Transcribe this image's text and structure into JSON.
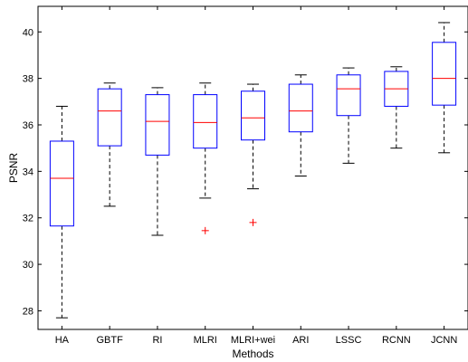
{
  "chart_data": {
    "type": "box",
    "xlabel": "Methods",
    "ylabel": "PSNR",
    "ylim": [
      27.2,
      41.1
    ],
    "yticks": [
      28,
      30,
      32,
      34,
      36,
      38,
      40
    ],
    "categories": [
      "HA",
      "GBTF",
      "RI",
      "MLRI",
      "MLRI+wei",
      "ARI",
      "LSSC",
      "RCNN",
      "JCNN"
    ],
    "boxes": [
      {
        "min": 27.7,
        "q1": 31.65,
        "median": 33.7,
        "q3": 35.3,
        "max": 36.8,
        "outliers": []
      },
      {
        "min": 32.5,
        "q1": 35.1,
        "median": 36.6,
        "q3": 37.55,
        "max": 37.8,
        "outliers": []
      },
      {
        "min": 31.25,
        "q1": 34.7,
        "median": 36.15,
        "q3": 37.3,
        "max": 37.6,
        "outliers": []
      },
      {
        "min": 32.85,
        "q1": 35.0,
        "median": 36.1,
        "q3": 37.3,
        "max": 37.8,
        "outliers": [
          31.45
        ]
      },
      {
        "min": 33.25,
        "q1": 35.35,
        "median": 36.3,
        "q3": 37.45,
        "max": 37.75,
        "outliers": [
          31.8
        ]
      },
      {
        "min": 33.8,
        "q1": 35.7,
        "median": 36.6,
        "q3": 37.75,
        "max": 38.15,
        "outliers": []
      },
      {
        "min": 34.35,
        "q1": 36.4,
        "median": 37.55,
        "q3": 38.15,
        "max": 38.45,
        "outliers": []
      },
      {
        "min": 35.0,
        "q1": 36.8,
        "median": 37.55,
        "q3": 38.3,
        "max": 38.5,
        "outliers": []
      },
      {
        "min": 34.8,
        "q1": 36.85,
        "median": 38.0,
        "q3": 39.55,
        "max": 40.4,
        "outliers": []
      }
    ],
    "colors": {
      "box": "#0000ff",
      "median": "#ff0000",
      "whisker": "#000000",
      "outlier": "#ff0000"
    },
    "grid": false,
    "legend": "none"
  }
}
